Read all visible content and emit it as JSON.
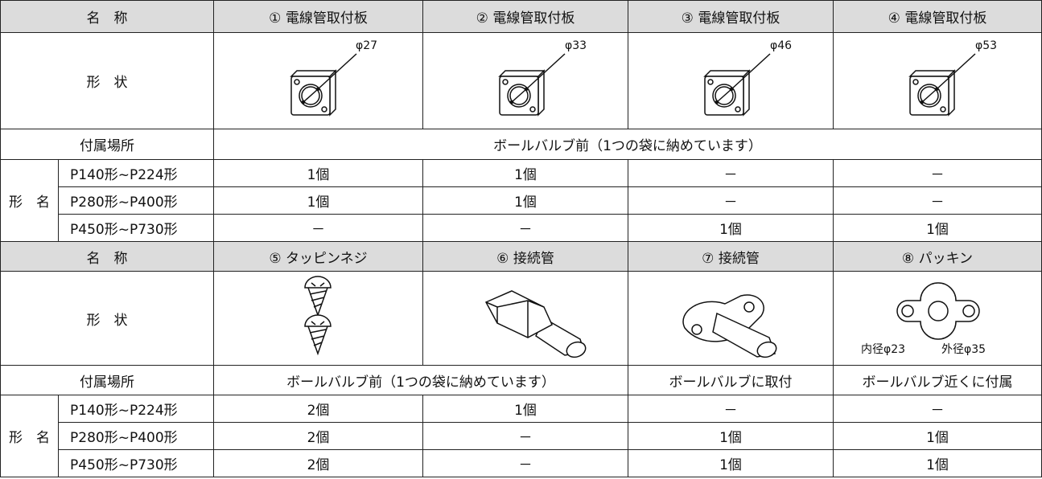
{
  "section1": {
    "header": {
      "name_label": "名　称",
      "items": [
        "① 電線管取付板",
        "② 電線管取付板",
        "③ 電線管取付板",
        "④ 電線管取付板"
      ]
    },
    "shape": {
      "label": "形　状",
      "dimensions": [
        "φ27",
        "φ33",
        "φ46",
        "φ53"
      ]
    },
    "location": {
      "label": "付属場所",
      "texts": [
        "ボールバルブ前（1つの袋に納めています）"
      ]
    },
    "model_label": "形　名",
    "rows": [
      {
        "model": "P140形~P224形",
        "qty": [
          "1個",
          "1個",
          "－",
          "－"
        ]
      },
      {
        "model": "P280形~P400形",
        "qty": [
          "1個",
          "1個",
          "－",
          "－"
        ]
      },
      {
        "model": "P450形~P730形",
        "qty": [
          "－",
          "－",
          "1個",
          "1個"
        ]
      }
    ]
  },
  "section2": {
    "header": {
      "name_label": "名　称",
      "items": [
        "⑤ タッピンネジ",
        "⑥ 接続管",
        "⑦ 接続管",
        "⑧ パッキン"
      ]
    },
    "shape": {
      "label": "形　状",
      "captions": [
        "内径φ23",
        "外径φ35"
      ]
    },
    "location": {
      "label": "付属場所",
      "texts": [
        "ボールバルブ前（1つの袋に納めています）",
        "ボールバルブに取付",
        "ボールバルブ近くに付属"
      ]
    },
    "model_label": "形　名",
    "rows": [
      {
        "model": "P140形~P224形",
        "qty": [
          "2個",
          "1個",
          "－",
          "－"
        ]
      },
      {
        "model": "P280形~P400形",
        "qty": [
          "2個",
          "－",
          "1個",
          "1個"
        ]
      },
      {
        "model": "P450形~P730形",
        "qty": [
          "2個",
          "－",
          "1個",
          "1個"
        ]
      }
    ]
  }
}
